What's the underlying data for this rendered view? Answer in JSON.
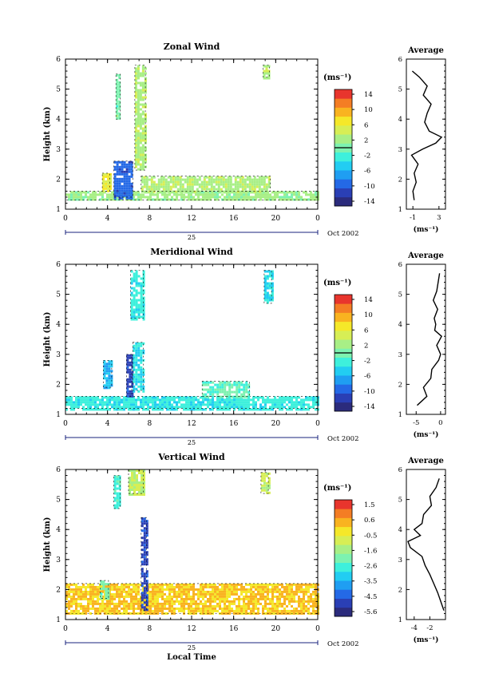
{
  "figure": {
    "date_label": "Oct 2002",
    "day_label": "25",
    "xlabel_bottom": "Local Time"
  },
  "colors": {
    "jet": [
      "#2b2b7c",
      "#2a3fb5",
      "#2469e6",
      "#1f9ef2",
      "#22cdf2",
      "#3ef0dc",
      "#7df2b0",
      "#a8ef86",
      "#d7ee55",
      "#f5e829",
      "#f9b320",
      "#f47d24",
      "#e8352d"
    ],
    "low_band": "#f4ec3c",
    "low_band_alt": "#f6d84a",
    "contour": "#000000"
  },
  "chart_data": [
    {
      "type": "heatmap",
      "title": "Zonal Wind",
      "ylabel": "Height (km)",
      "xlabel": "",
      "x_ticks": [
        "0",
        "4",
        "8",
        "12",
        "16",
        "20",
        "0"
      ],
      "x_range_hours": [
        0,
        24
      ],
      "ylim": [
        1,
        6
      ],
      "y_ticks": [
        "1",
        "2",
        "3",
        "4",
        "5",
        "6"
      ],
      "colorbar": {
        "unit_label": "(ms⁻¹)",
        "ticks": [
          "14",
          "10",
          "6",
          "2",
          "-2",
          "-6",
          "-10",
          "-14"
        ],
        "range": [
          -16,
          16
        ],
        "zero_line": true
      },
      "features": [
        {
          "x": [
            0,
            24
          ],
          "y": [
            1.3,
            1.6
          ],
          "value": 2
        },
        {
          "x": [
            3.5,
            4.2
          ],
          "y": [
            1.6,
            2.2
          ],
          "value": 6
        },
        {
          "x": [
            4.6,
            6.4
          ],
          "y": [
            1.4,
            2.6
          ],
          "value": -10
        },
        {
          "x": [
            4.8,
            5.2
          ],
          "y": [
            4.0,
            5.5
          ],
          "value": 0
        },
        {
          "x": [
            6.6,
            7.6
          ],
          "y": [
            2.3,
            5.8
          ],
          "value": 3
        },
        {
          "x": [
            7.2,
            19.5
          ],
          "y": [
            1.6,
            2.1
          ],
          "value": 3
        },
        {
          "x": [
            18.8,
            19.4
          ],
          "y": [
            5.4,
            5.8
          ],
          "value": 3
        }
      ],
      "average_profile": {
        "title": "Average",
        "xlabel": "(ms⁻¹)",
        "x_ticks": [
          "-1",
          "3"
        ],
        "xlim": [
          -2,
          4
        ],
        "heights": [
          1.3,
          1.6,
          1.9,
          2.2,
          2.5,
          2.8,
          3.0,
          3.2,
          3.4,
          3.6,
          3.9,
          4.2,
          4.5,
          4.8,
          5.1,
          5.4,
          5.6
        ],
        "values": [
          -0.8,
          -1.0,
          -0.5,
          -0.8,
          -0.2,
          -1.2,
          0.5,
          2.5,
          3.4,
          1.5,
          0.8,
          1.2,
          1.8,
          0.6,
          1.2,
          0.0,
          -1.1
        ]
      }
    },
    {
      "type": "heatmap",
      "title": "Meridional Wind",
      "ylabel": "Height (km)",
      "xlabel": "",
      "x_ticks": [
        "0",
        "4",
        "8",
        "12",
        "16",
        "20",
        "0"
      ],
      "x_range_hours": [
        0,
        24
      ],
      "ylim": [
        1,
        6
      ],
      "y_ticks": [
        "1",
        "2",
        "3",
        "4",
        "5",
        "6"
      ],
      "colorbar": {
        "unit_label": "(ms⁻¹)",
        "ticks": [
          "14",
          "10",
          "6",
          "2",
          "-2",
          "-6",
          "-10",
          "-14"
        ],
        "range": [
          -16,
          16
        ],
        "zero_line": true
      },
      "features": [
        {
          "x": [
            0,
            24
          ],
          "y": [
            1.2,
            1.6
          ],
          "value": -3
        },
        {
          "x": [
            3.6,
            4.4
          ],
          "y": [
            1.9,
            2.8
          ],
          "value": -6
        },
        {
          "x": [
            5.8,
            6.3
          ],
          "y": [
            1.6,
            3.0
          ],
          "value": -12
        },
        {
          "x": [
            6.4,
            7.4
          ],
          "y": [
            1.8,
            3.4
          ],
          "value": -4
        },
        {
          "x": [
            6.2,
            7.4
          ],
          "y": [
            4.2,
            5.8
          ],
          "value": -3
        },
        {
          "x": [
            13.0,
            17.5
          ],
          "y": [
            1.6,
            2.1
          ],
          "value": -1
        },
        {
          "x": [
            18.9,
            19.6
          ],
          "y": [
            4.7,
            5.8
          ],
          "value": -4
        }
      ],
      "average_profile": {
        "title": "Average",
        "xlabel": "(ms⁻¹)",
        "x_ticks": [
          "-5",
          "0"
        ],
        "xlim": [
          -7,
          1
        ],
        "heights": [
          1.3,
          1.6,
          1.9,
          2.2,
          2.5,
          2.8,
          3.0,
          3.3,
          3.6,
          3.8,
          4.0,
          4.2,
          4.5,
          4.8,
          5.1,
          5.4,
          5.7
        ],
        "values": [
          -4.8,
          -2.8,
          -3.5,
          -2.0,
          -1.8,
          -0.4,
          0.0,
          -0.8,
          0.2,
          -1.2,
          -1.0,
          -1.3,
          -0.6,
          -1.5,
          -0.8,
          -0.5,
          -0.2
        ]
      }
    },
    {
      "type": "heatmap",
      "title": "Vertical Wind",
      "ylabel": "Height (km)",
      "xlabel": "Local Time",
      "x_ticks": [
        "0",
        "4",
        "8",
        "12",
        "16",
        "20",
        "0"
      ],
      "x_range_hours": [
        0,
        24
      ],
      "ylim": [
        1,
        6
      ],
      "y_ticks": [
        "1",
        "2",
        "3",
        "4",
        "5",
        "6"
      ],
      "colorbar": {
        "unit_label": "(ms⁻¹)",
        "ticks": [
          "1.5",
          "0.6",
          "-0.5",
          "-1.6",
          "-2.6",
          "-3.5",
          "-4.5",
          "-5.6"
        ],
        "range": [
          -6,
          2
        ],
        "zero_line": false
      },
      "features": [
        {
          "x": [
            0,
            24
          ],
          "y": [
            1.2,
            2.2
          ],
          "value": 0.2
        },
        {
          "x": [
            3.3,
            4.1
          ],
          "y": [
            1.7,
            2.3
          ],
          "value": -2.0
        },
        {
          "x": [
            4.6,
            5.2
          ],
          "y": [
            4.7,
            5.8
          ],
          "value": -2.5
        },
        {
          "x": [
            6.0,
            7.4
          ],
          "y": [
            5.2,
            6.0
          ],
          "value": -1.0
        },
        {
          "x": [
            7.2,
            7.7
          ],
          "y": [
            1.3,
            4.4
          ],
          "value": -5.0
        },
        {
          "x": [
            18.6,
            19.3
          ],
          "y": [
            5.2,
            5.9
          ],
          "value": -1.0
        }
      ],
      "average_profile": {
        "title": "Average",
        "xlabel": "(ms⁻¹)",
        "x_ticks": [
          "-4",
          "-2"
        ],
        "xlim": [
          -5,
          0
        ],
        "heights": [
          1.3,
          1.6,
          1.9,
          2.2,
          2.5,
          2.8,
          3.1,
          3.4,
          3.6,
          3.8,
          4.0,
          4.2,
          4.5,
          4.8,
          5.1,
          5.4,
          5.7
        ],
        "values": [
          -0.2,
          -0.6,
          -1.0,
          -1.5,
          -2.0,
          -2.6,
          -3.0,
          -4.5,
          -4.8,
          -3.2,
          -4.0,
          -3.0,
          -2.8,
          -1.8,
          -2.0,
          -1.2,
          -0.8
        ]
      }
    }
  ]
}
